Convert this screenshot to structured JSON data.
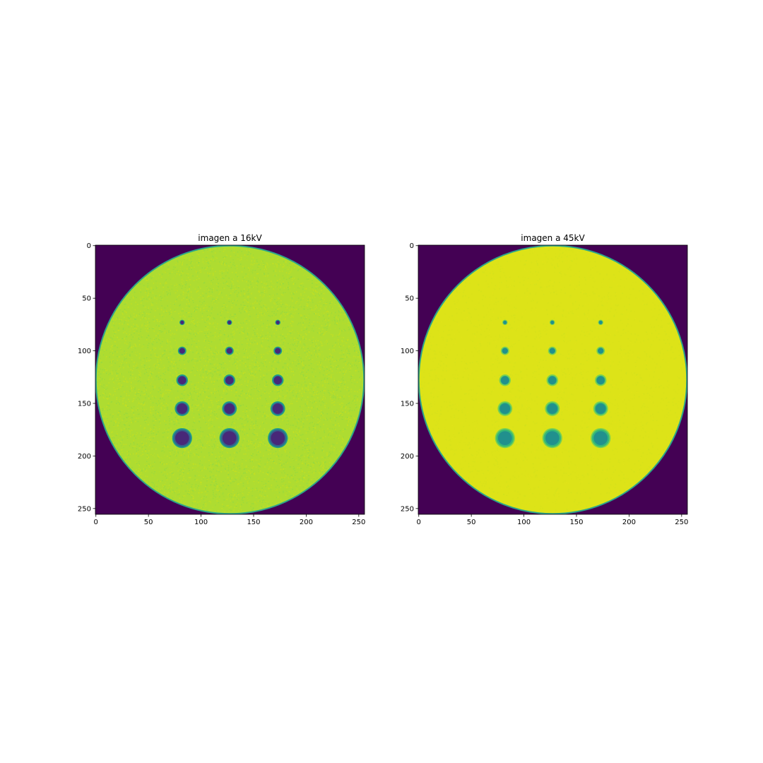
{
  "chart_data": [
    {
      "type": "heatmap",
      "title": "imagen a 16kV",
      "colormap": "viridis",
      "xlim": [
        0,
        255
      ],
      "ylim": [
        255,
        0
      ],
      "xticks": [
        0,
        50,
        100,
        150,
        200,
        250
      ],
      "yticks": [
        0,
        50,
        100,
        150,
        200,
        250
      ],
      "xtick_labels": [
        "0",
        "50",
        "100",
        "150",
        "200",
        "250"
      ],
      "ytick_labels": [
        "0",
        "50",
        "100",
        "150",
        "200",
        "250"
      ],
      "phantom": {
        "center": [
          127.5,
          127.5
        ],
        "radius": 127.5,
        "background_color": "#440154",
        "rim_color": "#2ba58a",
        "fill_color": "#aedc31",
        "noise_colors": [
          "#c7e020",
          "#94d840",
          "#b8de29"
        ]
      },
      "inserts": {
        "columns_x": [
          82,
          127,
          173
        ],
        "rows_y": [
          73,
          100,
          128,
          155,
          183
        ],
        "radii": [
          2.5,
          4,
          5.5,
          7,
          9.5
        ],
        "rim_color": "#1f9e89",
        "core_color": "#482878",
        "mid_color": "#33638d"
      }
    },
    {
      "type": "heatmap",
      "title": "imagen a 45kV",
      "colormap": "viridis",
      "xlim": [
        0,
        255
      ],
      "ylim": [
        255,
        0
      ],
      "xticks": [
        0,
        50,
        100,
        150,
        200,
        250
      ],
      "yticks": [
        0,
        50,
        100,
        150,
        200,
        250
      ],
      "xtick_labels": [
        "0",
        "50",
        "100",
        "150",
        "200",
        "250"
      ],
      "ytick_labels": [
        "0",
        "50",
        "100",
        "150",
        "200",
        "250"
      ],
      "phantom": {
        "center": [
          127.5,
          127.5
        ],
        "radius": 127.5,
        "background_color": "#440154",
        "rim_color": "#2ba58a",
        "fill_color": "#dde318",
        "noise_colors": [
          "#e5e419",
          "#cde11d",
          "#d8e219"
        ]
      },
      "inserts": {
        "columns_x": [
          82,
          127,
          173
        ],
        "rows_y": [
          73,
          100,
          128,
          155,
          183
        ],
        "radii": [
          2.5,
          4,
          5.5,
          7,
          9.5
        ],
        "rim_color": "#7ad151",
        "core_color": "#21908d",
        "mid_color": "#35b779"
      }
    }
  ]
}
